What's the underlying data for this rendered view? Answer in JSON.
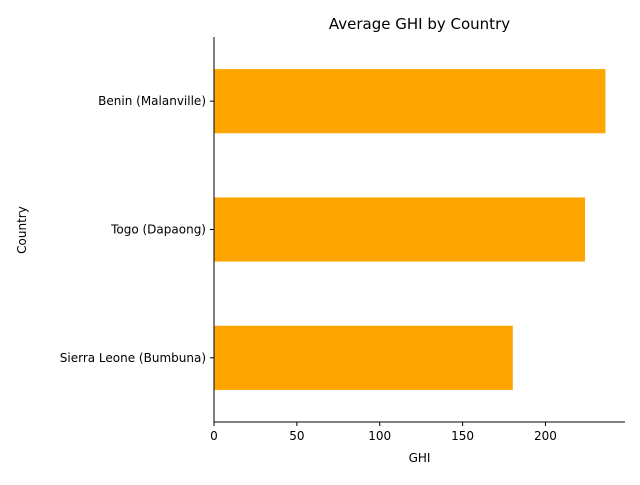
{
  "chart_data": {
    "type": "bar",
    "orientation": "horizontal",
    "title": "Average GHI by Country",
    "xlabel": "GHI",
    "ylabel": "Country",
    "categories": [
      "Sierra Leone (Bumbuna)",
      "Togo (Dapaong)",
      "Benin (Malanville)"
    ],
    "values": [
      180.3,
      223.9,
      236.2
    ],
    "xlim": [
      0,
      248
    ],
    "xticks": [
      0,
      50,
      100,
      150,
      200
    ],
    "bar_color": "#ffa500",
    "grid": false,
    "legend": "none"
  }
}
